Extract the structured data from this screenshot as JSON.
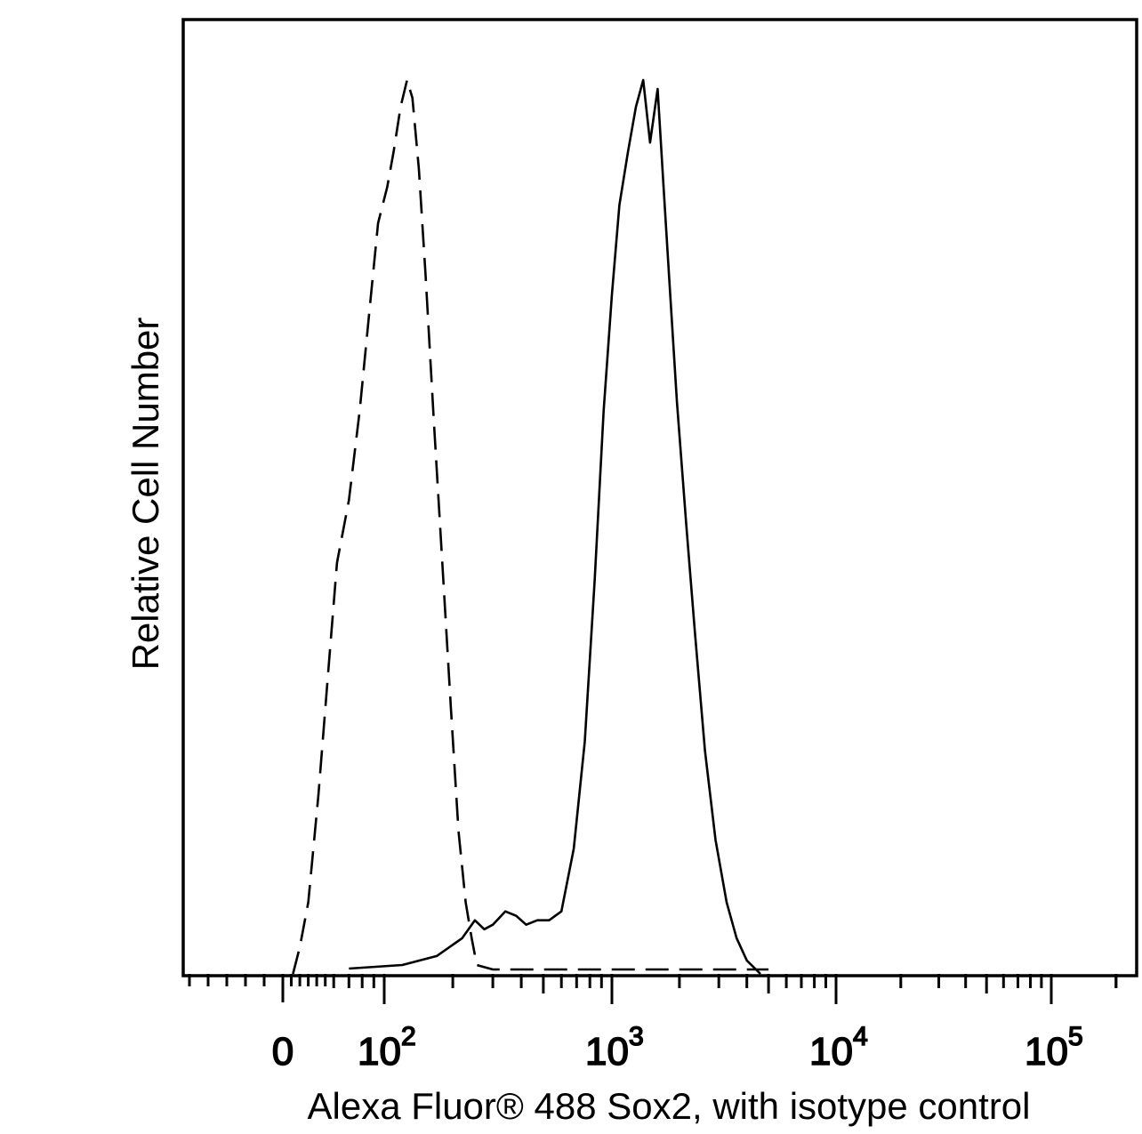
{
  "chart_data": {
    "type": "line",
    "title": "",
    "xlabel": "Alexa Fluor® 488 Sox2, with isotype control",
    "ylabel": "Relative Cell Number",
    "x_scale": "logicle",
    "xlim": [
      -50,
      250000
    ],
    "ylim": [
      0,
      105
    ],
    "grid": false,
    "legend": "none",
    "x_tick_labels": [
      {
        "value": 0,
        "base": "0",
        "exp": ""
      },
      {
        "value": 100,
        "base": "10",
        "exp": "2"
      },
      {
        "value": 1000,
        "base": "10",
        "exp": "3"
      },
      {
        "value": 10000,
        "base": "10",
        "exp": "4"
      },
      {
        "value": 100000,
        "base": "10",
        "exp": "5"
      }
    ],
    "series": [
      {
        "style": "dashed",
        "color": "#000000",
        "points": [
          [
            12,
            0
          ],
          [
            20,
            3
          ],
          [
            30,
            8
          ],
          [
            42,
            20
          ],
          [
            52,
            32
          ],
          [
            62,
            46
          ],
          [
            70,
            53
          ],
          [
            78,
            63
          ],
          [
            86,
            74
          ],
          [
            94,
            84
          ],
          [
            103,
            88
          ],
          [
            110,
            92
          ],
          [
            118,
            97
          ],
          [
            126,
            100
          ],
          [
            133,
            98
          ],
          [
            142,
            90
          ],
          [
            152,
            78
          ],
          [
            165,
            62
          ],
          [
            180,
            46
          ],
          [
            196,
            30
          ],
          [
            212,
            16
          ],
          [
            228,
            8
          ],
          [
            242,
            4
          ],
          [
            255,
            1
          ],
          [
            300,
            0.5
          ],
          [
            1000,
            0.5
          ],
          [
            5000,
            0.5
          ]
        ]
      },
      {
        "style": "solid",
        "color": "#000000",
        "points": [
          [
            70,
            0.6
          ],
          [
            120,
            1
          ],
          [
            170,
            2
          ],
          [
            220,
            4
          ],
          [
            250,
            6
          ],
          [
            275,
            5
          ],
          [
            300,
            5.5
          ],
          [
            340,
            7
          ],
          [
            380,
            6.5
          ],
          [
            420,
            5.5
          ],
          [
            470,
            6
          ],
          [
            530,
            6
          ],
          [
            600,
            7
          ],
          [
            680,
            14
          ],
          [
            760,
            26
          ],
          [
            840,
            44
          ],
          [
            920,
            63
          ],
          [
            1000,
            76
          ],
          [
            1080,
            86
          ],
          [
            1180,
            92
          ],
          [
            1280,
            97
          ],
          [
            1380,
            100
          ],
          [
            1480,
            93
          ],
          [
            1600,
            99
          ],
          [
            1700,
            88
          ],
          [
            1800,
            78
          ],
          [
            1950,
            64
          ],
          [
            2150,
            50
          ],
          [
            2350,
            38
          ],
          [
            2600,
            25
          ],
          [
            2900,
            15
          ],
          [
            3250,
            8
          ],
          [
            3600,
            4
          ],
          [
            4000,
            1.5
          ],
          [
            4600,
            0
          ]
        ]
      }
    ]
  }
}
